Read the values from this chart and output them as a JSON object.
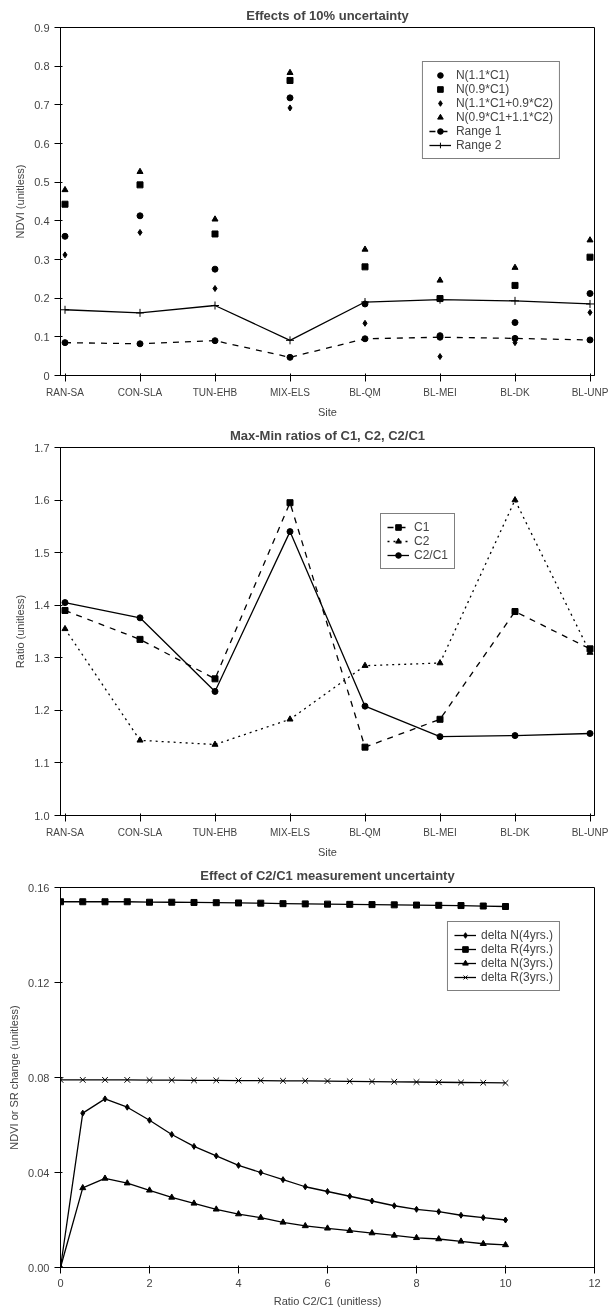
{
  "chart_data": [
    {
      "type": "scatter",
      "title": "Effects of 10% uncertainty",
      "xlabel": "Site",
      "ylabel": "NDVI (unitless)",
      "categories": [
        "RAN-SA",
        "CON-SLA",
        "TUN-EHB",
        "MIX-ELS",
        "BL-QM",
        "BL-MEI",
        "BL-DK",
        "BL-UNP"
      ],
      "ylim": [
        0,
        0.9
      ],
      "yticks": [
        0,
        0.1,
        0.2,
        0.3,
        0.4,
        0.5,
        0.6,
        0.7,
        0.8,
        0.9
      ],
      "grid": false,
      "legend": "top right",
      "series": [
        {
          "name": "N(1.1*C1)",
          "color": "#000000",
          "marker": "circle",
          "values": [
            0.36,
            0.413,
            0.275,
            0.718,
            0.185,
            0.103,
            0.137,
            0.212
          ]
        },
        {
          "name": "N(0.9*C1)",
          "color": "#000000",
          "marker": "square",
          "values": [
            0.443,
            0.493,
            0.366,
            0.763,
            0.281,
            0.199,
            0.233,
            0.306
          ]
        },
        {
          "name": "N(1.1*C1+0.9*C2)",
          "color": "#000000",
          "marker": "diamond",
          "values": [
            0.312,
            0.37,
            0.225,
            0.692,
            0.135,
            0.049,
            0.085,
            0.163
          ]
        },
        {
          "name": "N(0.9*C1+1.1*C2)",
          "color": "#000000",
          "marker": "triangle",
          "values": [
            0.48,
            0.527,
            0.404,
            0.783,
            0.326,
            0.246,
            0.279,
            0.35
          ]
        },
        {
          "name": "Range 1",
          "type": "line",
          "color": "#000000",
          "marker": "circle",
          "line_style": "dashed",
          "values": [
            0.085,
            0.082,
            0.09,
            0.047,
            0.095,
            0.099,
            0.096,
            0.092
          ]
        },
        {
          "name": "Range 2",
          "type": "line",
          "color": "#000000",
          "marker": "cross",
          "line_style": "solid",
          "values": [
            0.17,
            0.162,
            0.181,
            0.091,
            0.19,
            0.196,
            0.193,
            0.185
          ]
        }
      ]
    },
    {
      "type": "line",
      "title": "Max-Min ratios of C1, C2, C2/C1",
      "xlabel": "Site",
      "ylabel": "Ratio (unitless)",
      "categories": [
        "RAN-SA",
        "CON-SLA",
        "TUN-EHB",
        "MIX-ELS",
        "BL-QM",
        "BL-MEI",
        "BL-DK",
        "BL-UNP"
      ],
      "ylim": [
        1.0,
        1.7
      ],
      "yticks": [
        {
          "value": 1,
          "label": "1.0"
        },
        1.1,
        1.2,
        1.3,
        1.4,
        1.5,
        1.6,
        1.7
      ],
      "grid": false,
      "legend": "top",
      "series": [
        {
          "name": "C1",
          "color": "#000000",
          "marker": "square",
          "line_style": "dashed",
          "values": [
            1.39,
            1.335,
            1.26,
            1.595,
            1.13,
            1.183,
            1.388,
            1.317
          ]
        },
        {
          "name": "C2",
          "color": "#000000",
          "marker": "triangle",
          "line_style": "dotted",
          "values": [
            1.355,
            1.143,
            1.135,
            1.183,
            1.285,
            1.29,
            1.6,
            1.31
          ]
        },
        {
          "name": "C2/C1",
          "color": "#000000",
          "marker": "circle",
          "line_style": "solid",
          "values": [
            1.405,
            1.376,
            1.236,
            1.54,
            1.208,
            1.15,
            1.152,
            1.156
          ]
        }
      ]
    },
    {
      "type": "line",
      "title": "Effect of C2/C1 measurement uncertainty",
      "xlabel": "Ratio C2/C1 (unitless)",
      "ylabel": "NDVI or SR change (unitless)",
      "x": [
        0,
        0.5,
        1,
        1.5,
        2,
        2.5,
        3,
        3.5,
        4,
        4.5,
        5,
        5.5,
        6,
        6.5,
        7,
        7.5,
        8,
        8.5,
        9,
        9.5,
        10
      ],
      "xlim": [
        0,
        12
      ],
      "xticks": [
        0,
        2,
        4,
        6,
        8,
        10,
        12
      ],
      "ylim": [
        0,
        0.16
      ],
      "yticks": [
        {
          "value": 0,
          "label": "0.00"
        },
        0.04,
        0.08,
        0.12,
        0.16
      ],
      "grid": false,
      "legend": "top right",
      "series": [
        {
          "name": "delta N(4yrs.)",
          "color": "#000000",
          "marker": "diamond",
          "line_style": "solid",
          "values": [
            0,
            0.065,
            0.071,
            0.0675,
            0.062,
            0.056,
            0.051,
            0.047,
            0.043,
            0.04,
            0.037,
            0.034,
            0.032,
            0.03,
            0.028,
            0.026,
            0.0245,
            0.0235,
            0.022,
            0.021,
            0.02
          ]
        },
        {
          "name": "delta R(4yrs.)",
          "color": "#000000",
          "marker": "square",
          "line_style": "solid",
          "values": [
            0.154,
            0.154,
            0.154,
            0.154,
            0.1538,
            0.1538,
            0.1537,
            0.1536,
            0.1535,
            0.1534,
            0.1532,
            0.1531,
            0.153,
            0.1529,
            0.1528,
            0.1527,
            0.1526,
            0.1525,
            0.1524,
            0.1522,
            0.152
          ]
        },
        {
          "name": "delta N(3yrs.)",
          "color": "#000000",
          "marker": "triangle",
          "line_style": "solid",
          "values": [
            0,
            0.0335,
            0.0375,
            0.0355,
            0.0325,
            0.0295,
            0.027,
            0.0245,
            0.0225,
            0.021,
            0.019,
            0.0175,
            0.0165,
            0.0155,
            0.0145,
            0.0135,
            0.0125,
            0.012,
            0.011,
            0.01,
            0.0095
          ]
        },
        {
          "name": "delta R(3yrs.)",
          "color": "#000000",
          "marker": "x",
          "line_style": "solid",
          "values": [
            0.079,
            0.079,
            0.079,
            0.079,
            0.0789,
            0.0789,
            0.0788,
            0.0788,
            0.0787,
            0.0787,
            0.0786,
            0.0786,
            0.0785,
            0.0784,
            0.0783,
            0.0782,
            0.0781,
            0.078,
            0.0779,
            0.0778,
            0.0777
          ]
        }
      ]
    }
  ]
}
